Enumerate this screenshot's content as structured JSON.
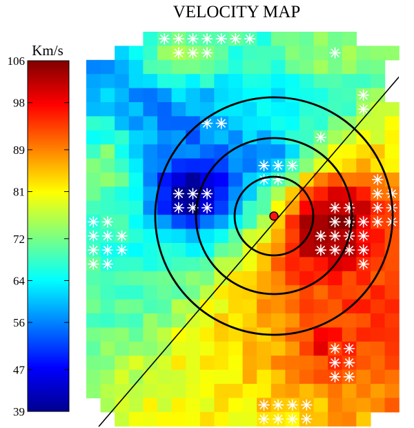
{
  "chart_data": {
    "type": "heatmap",
    "title": "VELOCITY MAP",
    "colorbar": {
      "label": "Km/s",
      "range": [
        39,
        106
      ],
      "ticks": [
        106,
        98,
        89,
        81,
        72,
        64,
        56,
        47,
        39
      ]
    },
    "grid": {
      "cols": 22,
      "rows": 28
    },
    "features": {
      "center_marker": "red-dot",
      "contours": 3,
      "major_axis": "diagonal line",
      "masked_cells": "white stars"
    }
  }
}
